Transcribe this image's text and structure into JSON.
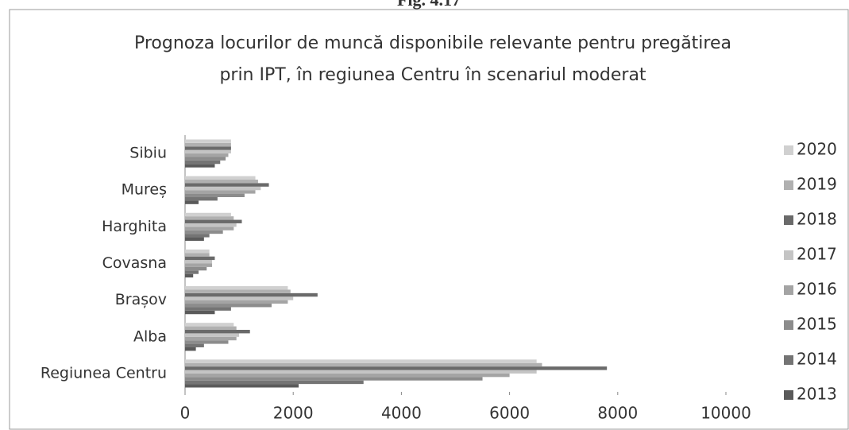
{
  "chart_data": {
    "type": "bar",
    "orientation": "horizontal",
    "figure_label": "Fig. 4.17",
    "title": [
      "Prognoza locurilor de muncă disponibile  relevante pentru pregătirea",
      "prin IPT, în regiunea Centru în scenariul moderat"
    ],
    "categories": [
      "Regiunea Centru",
      "Alba",
      "Brașov",
      "Covasna",
      "Harghita",
      "Mureș",
      "Sibiu"
    ],
    "series": [
      {
        "name": "2013",
        "color": "#5a5a5a",
        "values": [
          2100,
          200,
          550,
          150,
          350,
          250,
          550
        ]
      },
      {
        "name": "2014",
        "color": "#747474",
        "values": [
          3300,
          350,
          850,
          250,
          450,
          600,
          650
        ]
      },
      {
        "name": "2015",
        "color": "#8c8c8c",
        "values": [
          5500,
          800,
          1600,
          400,
          700,
          1100,
          750
        ]
      },
      {
        "name": "2016",
        "color": "#a4a4a4",
        "values": [
          6000,
          950,
          1900,
          500,
          900,
          1300,
          800
        ]
      },
      {
        "name": "2017",
        "color": "#c4c4c4",
        "values": [
          6500,
          1000,
          2000,
          500,
          950,
          1400,
          850
        ]
      },
      {
        "name": "2018",
        "color": "#6a6a6a",
        "values": [
          7800,
          1200,
          2450,
          550,
          1050,
          1550,
          850
        ]
      },
      {
        "name": "2019",
        "color": "#b0b0b0",
        "values": [
          6600,
          950,
          1950,
          450,
          900,
          1350,
          850
        ]
      },
      {
        "name": "2020",
        "color": "#d0d0d0",
        "values": [
          6500,
          900,
          1900,
          450,
          850,
          1300,
          850
        ]
      }
    ],
    "xlim": [
      0,
      10000
    ],
    "xticks": [
      0,
      2000,
      4000,
      6000,
      8000,
      10000
    ],
    "legend": "right",
    "grid": false
  }
}
